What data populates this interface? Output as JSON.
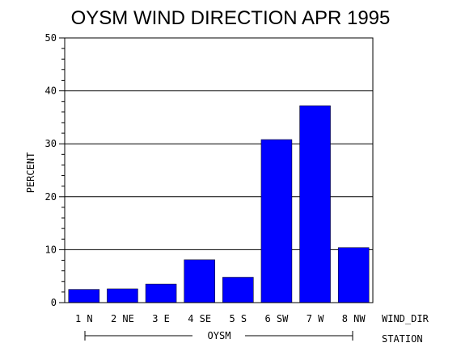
{
  "chart_data": {
    "type": "bar",
    "title": "OYSM WIND DIRECTION APR 1995",
    "ylabel": "PERCENT",
    "xlabel": "WIND_DIR",
    "group_label": "OYSM",
    "group_axis_label": "STATION",
    "categories": [
      "1 N",
      "2 NE",
      "3 E",
      "4 SE",
      "5 S",
      "6 SW",
      "7 W",
      "8 NW"
    ],
    "values": [
      2.5,
      2.6,
      3.5,
      8.1,
      4.8,
      30.8,
      37.2,
      10.4
    ],
    "ylim": [
      0,
      50
    ],
    "yticks": [
      0,
      10,
      20,
      30,
      40,
      50
    ],
    "grid": true,
    "bar_color": "#0000FF"
  }
}
